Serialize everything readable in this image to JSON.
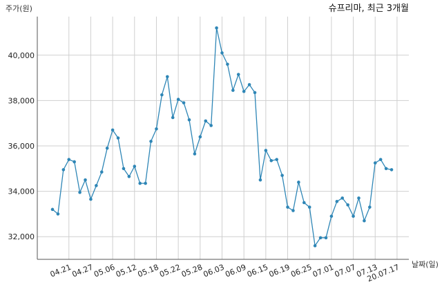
{
  "chart_data": {
    "type": "line",
    "title": "슈프리마, 최근 3개월",
    "ylabel": "주가(원)",
    "xlabel": "날짜(일)",
    "ylim": [
      31000,
      41700
    ],
    "grid": true,
    "line_color": "#2e86b6",
    "y_ticks": [
      32000,
      34000,
      36000,
      38000,
      40000
    ],
    "y_tick_labels": [
      "32,000",
      "34,000",
      "36,000",
      "38,000",
      "40,000"
    ],
    "x_tick_labels": [
      "04.21",
      "04.27",
      "05.06",
      "05.12",
      "05.18",
      "05.22",
      "05.28",
      "06.03",
      "06.09",
      "06.15",
      "06.19",
      "06.25",
      "07.01",
      "07.07",
      "07.13",
      "20.07.17"
    ],
    "x_tick_indices": [
      3,
      7,
      11,
      15,
      19,
      23,
      27,
      31,
      35,
      39,
      43,
      47,
      51,
      55,
      59,
      63
    ],
    "values": [
      33200,
      33000,
      34950,
      35400,
      35300,
      33950,
      34500,
      33650,
      34250,
      34850,
      35900,
      36700,
      36350,
      35000,
      34650,
      35100,
      34350,
      34350,
      36200,
      36750,
      38250,
      39050,
      37250,
      38050,
      37900,
      37150,
      35650,
      36400,
      37100,
      36900,
      41200,
      40100,
      39600,
      38450,
      39150,
      38400,
      38700,
      38350,
      34500,
      35800,
      35350,
      35400,
      34700,
      33300,
      33150,
      34400,
      33500,
      33300,
      31600,
      31950,
      31950,
      32900,
      33550,
      33700,
      33400,
      32900,
      33700,
      32700,
      33300,
      35250,
      35400,
      35000,
      34950
    ]
  }
}
